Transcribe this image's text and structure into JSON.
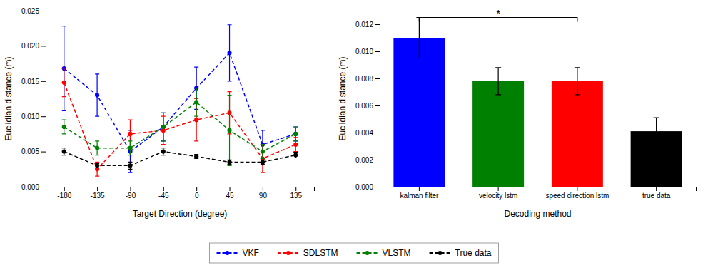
{
  "chart_data": [
    {
      "type": "line",
      "xlabel": "Target Direction (degree)",
      "ylabel": "Euclidian distance (m)",
      "x": [
        -180,
        -135,
        -90,
        -45,
        0,
        45,
        90,
        135
      ],
      "xlim": [
        -205,
        160
      ],
      "xticks": [
        -180,
        -135,
        -90,
        -45,
        0,
        45,
        90,
        135
      ],
      "ylim": [
        0.0,
        0.025
      ],
      "yticks": [
        {
          "value": 0,
          "label": "0.000"
        },
        0.005,
        {
          "value": 0.01,
          "label": "0.010"
        },
        0.015,
        {
          "value": 0.02,
          "label": "0.020"
        },
        0.025
      ],
      "marker": "circle",
      "line_style": "dashed",
      "legend": "bottom",
      "series": [
        {
          "name": "VKF",
          "color": "#0000ff",
          "values": [
            0.0168,
            0.013,
            0.005,
            0.0085,
            0.014,
            0.019,
            0.006,
            0.0075
          ],
          "errors": [
            0.006,
            0.003,
            0.003,
            0.002,
            0.003,
            0.004,
            0.002,
            0.001
          ]
        },
        {
          "name": "SDLSTM",
          "color": "#ff0000",
          "values": [
            0.0148,
            0.0025,
            0.0075,
            0.008,
            0.0095,
            0.0105,
            0.004,
            0.006
          ],
          "errors": [
            0.002,
            0.001,
            0.002,
            0.002,
            0.003,
            0.003,
            0.002,
            0.001
          ]
        },
        {
          "name": "VLSTM",
          "color": "#008000",
          "values": [
            0.0085,
            0.0055,
            0.0055,
            0.0085,
            0.012,
            0.008,
            0.005,
            0.0075
          ],
          "errors": [
            0.001,
            0.001,
            0.001,
            0.002,
            0.002,
            0.005,
            0.001,
            0.001
          ]
        },
        {
          "name": "True data",
          "color": "#000000",
          "values": [
            0.005,
            0.003,
            0.003,
            0.005,
            0.0043,
            0.0035,
            0.0035,
            0.0045
          ],
          "errors": [
            0.0005,
            0.0003,
            0.0005,
            0.0005,
            0.0003,
            0.0003,
            0.0003,
            0.0004
          ]
        }
      ]
    },
    {
      "type": "bar",
      "xlabel": "Decoding method",
      "ylabel": "Euclidian distance (m)",
      "categories": [
        "kalman filter",
        "velocity lstm",
        "speed direction lstm",
        "true data"
      ],
      "values": [
        0.011,
        0.0078,
        0.0078,
        0.0041
      ],
      "errors": [
        0.0015,
        0.001,
        0.001,
        0.001
      ],
      "colors": [
        "#0000ff",
        "#008000",
        "#ff0000",
        "#000000"
      ],
      "ylim": [
        0.0,
        0.013
      ],
      "yticks": [
        {
          "value": 0,
          "label": "0.000"
        },
        0.002,
        0.004,
        0.006,
        0.008,
        {
          "value": 0.01,
          "label": "0.010"
        },
        0.012
      ],
      "annotations": [
        {
          "text": "*",
          "x1": "kalman filter",
          "x2": "speed direction lstm",
          "y": 0.0125
        }
      ]
    }
  ]
}
